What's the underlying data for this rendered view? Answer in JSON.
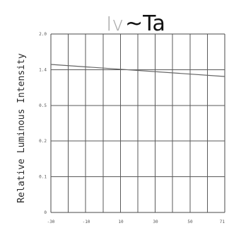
{
  "chart_data": {
    "type": "line",
    "title_parts": {
      "left": "Iv",
      "right": "~Ta"
    },
    "ylabel": "Relative Luminous Intensity",
    "xlabel": "",
    "x_ticks": [
      "-30",
      "-10",
      "10",
      "30",
      "50",
      "71"
    ],
    "y_ticks": [
      "0",
      "0.1",
      "0.2",
      "0.5",
      "1.4",
      "2.0"
    ],
    "series": [
      {
        "points": [
          {
            "x": -30,
            "y": 1.4
          },
          {
            "x": 71,
            "y": 1.3
          }
        ]
      }
    ],
    "grid": true
  }
}
